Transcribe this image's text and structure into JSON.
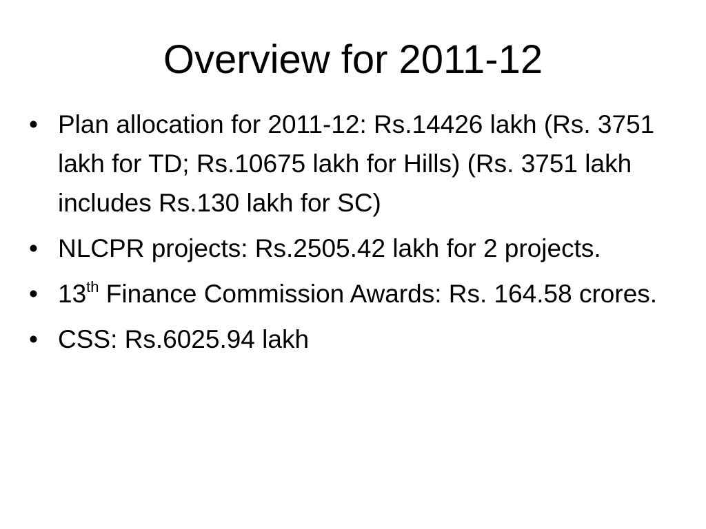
{
  "slide": {
    "title": "Overview for 2011-12",
    "bullet_glyph": "•",
    "bullets": [
      {
        "text": "Plan allocation for 2011-12: Rs.14426 lakh (Rs. 3751 lakh for TD; Rs.10675 lakh for Hills) (Rs. 3751 lakh includes Rs.130 lakh for SC)"
      },
      {
        "text": "NLCPR projects: Rs.2505.42 lakh for 2 projects."
      },
      {
        "prefix": "13",
        "superscript": "th",
        "text": " Finance Commission Awards: Rs. 164.58 crores."
      },
      {
        "text": "CSS: Rs.6025.94 lakh"
      }
    ]
  }
}
